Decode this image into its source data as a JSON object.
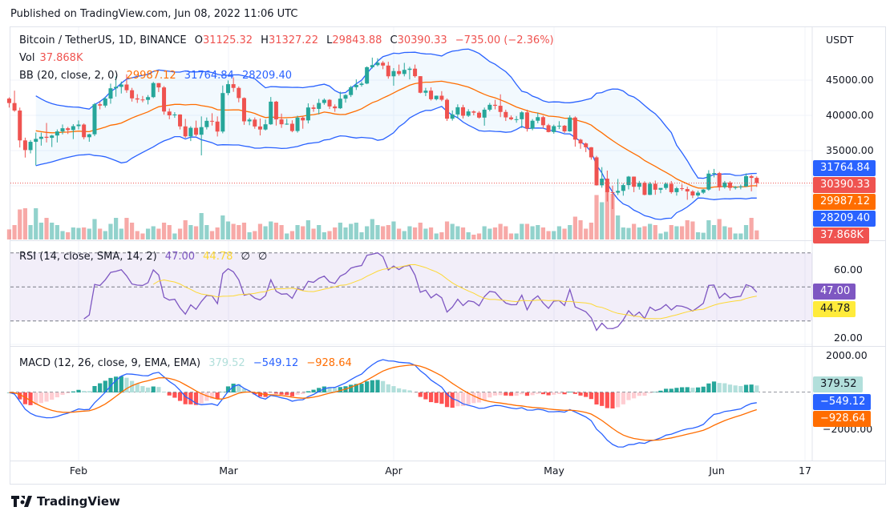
{
  "published": "Published on TradingView.com, Jun 08, 2022 11:06 UTC",
  "legend": {
    "symbol": "Bitcoin / TetherUS, 1D, BINANCE",
    "o_label": "O",
    "o": "31125.32",
    "h_label": "H",
    "h": "31327.22",
    "l_label": "L",
    "l": "29843.88",
    "c_label": "C",
    "c": "30390.33",
    "change": "−735.00 (−2.36%)",
    "vol_label": "Vol",
    "vol": "37.868K",
    "bb_label": "BB (20, close, 2, 0)",
    "bb_basis": "29987.12",
    "bb_upper": "31764.84",
    "bb_lower": "28209.40",
    "rsi_label": "RSI (14, close, SMA, 14, 2)",
    "rsi": "47.00",
    "rsi_ma": "44.78",
    "rsi_n1": "∅",
    "rsi_n2": "∅",
    "macd_label": "MACD (12, 26, close, 9, EMA, EMA)",
    "macd_hist": "379.52",
    "macd": "−549.12",
    "macd_signal": "−928.64"
  },
  "axis": {
    "currency": "USDT",
    "price_ticks": [
      "45000.00",
      "40000.00",
      "35000.00"
    ],
    "rsi_ticks": [
      "60.00",
      "20.00"
    ],
    "macd_ticks": [
      "2000.00",
      "−2000.00"
    ],
    "dates": [
      "Feb",
      "Mar",
      "Apr",
      "May",
      "Jun",
      "17"
    ]
  },
  "tags": {
    "bb_upper": "31764.84",
    "close": "30390.33",
    "bb_basis": "29987.12",
    "bb_lower": "28209.40",
    "vol": "37.868K",
    "rsi": "47.00",
    "rsi_ma": "44.78",
    "macd_hist": "379.52",
    "macd": "−549.12",
    "macd_signal": "−928.64"
  },
  "colors": {
    "up": "#26a69a",
    "down": "#ef5350",
    "bb_band": "#2962ff",
    "bb_basis": "#ff6d00",
    "rsi": "#7e57c2",
    "rsi_ma": "#fdd835",
    "macd": "#2962ff",
    "signal": "#ff6d00"
  },
  "footer": {
    "brand": "TradingView"
  },
  "chart_data": {
    "type": "candlestick",
    "title": "Bitcoin / TetherUS, 1D, BINANCE",
    "ylabel": "USDT",
    "ylim": [
      26000,
      49500
    ],
    "grid": true,
    "columns": [
      "date",
      "open",
      "high",
      "low",
      "close",
      "volume_k"
    ],
    "candles": [
      [
        "2022-01-19",
        42375,
        42550,
        41100,
        41744,
        42
      ],
      [
        "2022-01-20",
        41744,
        43500,
        40500,
        40680,
        60
      ],
      [
        "2022-01-21",
        40680,
        41100,
        35440,
        36445,
        125
      ],
      [
        "2022-01-22",
        36445,
        36835,
        34010,
        35071,
        130
      ],
      [
        "2022-01-23",
        35071,
        36500,
        34600,
        36244,
        60
      ],
      [
        "2022-01-24",
        36244,
        37550,
        32900,
        36660,
        130
      ],
      [
        "2022-01-25",
        36660,
        37550,
        35700,
        36958,
        70
      ],
      [
        "2022-01-26",
        36958,
        38920,
        36150,
        36810,
        90
      ],
      [
        "2022-01-27",
        36810,
        37230,
        35500,
        37138,
        70
      ],
      [
        "2022-01-28",
        37138,
        38000,
        36150,
        37713,
        60
      ],
      [
        "2022-01-29",
        37713,
        38700,
        37300,
        38166,
        35
      ],
      [
        "2022-01-30",
        38166,
        38360,
        37350,
        37917,
        30
      ],
      [
        "2022-01-31",
        37917,
        38750,
        36630,
        38466,
        50
      ],
      [
        "2022-02-01",
        38466,
        39270,
        38000,
        38691,
        48
      ],
      [
        "2022-02-02",
        38691,
        38850,
        36600,
        36896,
        50
      ],
      [
        "2022-02-03",
        36896,
        37390,
        36250,
        37311,
        45
      ],
      [
        "2022-02-04",
        37311,
        41750,
        37050,
        41574,
        85
      ],
      [
        "2022-02-05",
        41574,
        41900,
        40850,
        41382,
        45
      ],
      [
        "2022-02-06",
        41382,
        42650,
        41100,
        42380,
        35
      ],
      [
        "2022-02-07",
        42380,
        44500,
        41650,
        43839,
        65
      ],
      [
        "2022-02-08",
        43839,
        45500,
        42650,
        44042,
        90
      ],
      [
        "2022-02-09",
        44042,
        44800,
        43100,
        44372,
        45
      ],
      [
        "2022-02-10",
        44372,
        45820,
        43200,
        43565,
        90
      ],
      [
        "2022-02-11",
        43565,
        43900,
        41950,
        42407,
        70
      ],
      [
        "2022-02-12",
        42407,
        43000,
        41750,
        42244,
        35
      ],
      [
        "2022-02-13",
        42244,
        42750,
        41850,
        42197,
        25
      ],
      [
        "2022-02-14",
        42197,
        42880,
        41550,
        42586,
        45
      ],
      [
        "2022-02-15",
        42586,
        44750,
        42450,
        44575,
        55
      ],
      [
        "2022-02-16",
        44575,
        44580,
        43300,
        43961,
        45
      ],
      [
        "2022-02-17",
        43961,
        44150,
        40100,
        40538,
        70
      ],
      [
        "2022-02-18",
        40538,
        40970,
        39450,
        40000,
        60
      ],
      [
        "2022-02-19",
        40000,
        40450,
        39650,
        40118,
        25
      ],
      [
        "2022-02-20",
        40118,
        40150,
        38000,
        38431,
        45
      ],
      [
        "2022-02-21",
        38431,
        39500,
        36800,
        37017,
        80
      ],
      [
        "2022-02-22",
        37017,
        38450,
        36350,
        38230,
        60
      ],
      [
        "2022-02-23",
        38230,
        39250,
        37050,
        37250,
        55
      ],
      [
        "2022-02-24",
        37250,
        39850,
        34320,
        38328,
        110
      ],
      [
        "2022-02-25",
        38328,
        39700,
        38000,
        39219,
        60
      ],
      [
        "2022-02-26",
        39219,
        40300,
        38550,
        39116,
        35
      ],
      [
        "2022-02-27",
        39116,
        39850,
        37000,
        37699,
        50
      ],
      [
        "2022-02-28",
        37699,
        44230,
        37450,
        43160,
        100
      ],
      [
        "2022-03-01",
        43160,
        44950,
        42850,
        44421,
        75
      ],
      [
        "2022-03-02",
        44421,
        45400,
        43330,
        43892,
        65
      ],
      [
        "2022-03-03",
        43892,
        44100,
        41850,
        42454,
        60
      ],
      [
        "2022-03-04",
        42454,
        42550,
        38650,
        39148,
        70
      ],
      [
        "2022-03-05",
        39148,
        39650,
        38600,
        39398,
        30
      ],
      [
        "2022-03-06",
        39398,
        39700,
        38100,
        38420,
        35
      ],
      [
        "2022-03-07",
        38420,
        39550,
        37150,
        37988,
        65
      ],
      [
        "2022-03-08",
        37988,
        39400,
        37850,
        38730,
        55
      ],
      [
        "2022-03-09",
        38730,
        42600,
        38650,
        41941,
        75
      ],
      [
        "2022-03-10",
        41941,
        42050,
        38550,
        39422,
        70
      ],
      [
        "2022-03-11",
        39422,
        40250,
        38220,
        38730,
        60
      ],
      [
        "2022-03-12",
        38730,
        39500,
        38650,
        38807,
        25
      ],
      [
        "2022-03-13",
        38807,
        39300,
        37600,
        37777,
        35
      ],
      [
        "2022-03-14",
        37777,
        39950,
        37550,
        39671,
        60
      ],
      [
        "2022-03-15",
        39671,
        39880,
        38100,
        39280,
        55
      ],
      [
        "2022-03-16",
        39280,
        41700,
        38850,
        41114,
        80
      ],
      [
        "2022-03-17",
        41114,
        41500,
        40500,
        40917,
        45
      ],
      [
        "2022-03-18",
        40917,
        42330,
        40140,
        41757,
        60
      ],
      [
        "2022-03-19",
        41757,
        42400,
        41500,
        42201,
        30
      ],
      [
        "2022-03-20",
        42201,
        42300,
        40900,
        41262,
        35
      ],
      [
        "2022-03-21",
        41262,
        41550,
        40500,
        41002,
        50
      ],
      [
        "2022-03-22",
        41002,
        43360,
        40900,
        42364,
        70
      ],
      [
        "2022-03-23",
        42364,
        43000,
        41800,
        42882,
        50
      ],
      [
        "2022-03-24",
        42882,
        44200,
        42600,
        43991,
        65
      ],
      [
        "2022-03-25",
        43991,
        45100,
        43600,
        44313,
        70
      ],
      [
        "2022-03-26",
        44313,
        44800,
        44070,
        44511,
        30
      ],
      [
        "2022-03-27",
        44511,
        46950,
        44420,
        46827,
        55
      ],
      [
        "2022-03-28",
        46827,
        48190,
        46650,
        47128,
        85
      ],
      [
        "2022-03-29",
        47128,
        48100,
        46950,
        47465,
        60
      ],
      [
        "2022-03-30",
        47465,
        47700,
        46550,
        47062,
        55
      ],
      [
        "2022-03-31",
        47062,
        47600,
        45200,
        45538,
        60
      ],
      [
        "2022-04-01",
        45538,
        46700,
        44200,
        46281,
        75
      ],
      [
        "2022-04-02",
        46281,
        47200,
        45620,
        45868,
        45
      ],
      [
        "2022-04-03",
        45868,
        47440,
        45530,
        46453,
        35
      ],
      [
        "2022-04-04",
        46453,
        46890,
        45100,
        46622,
        55
      ],
      [
        "2022-04-05",
        46622,
        47200,
        45350,
        45555,
        50
      ],
      [
        "2022-04-06",
        45555,
        45560,
        43120,
        43206,
        70
      ],
      [
        "2022-04-07",
        43206,
        43900,
        42730,
        43503,
        45
      ],
      [
        "2022-04-08",
        43503,
        43970,
        42100,
        42287,
        50
      ],
      [
        "2022-04-09",
        42287,
        42800,
        42120,
        42782,
        25
      ],
      [
        "2022-04-10",
        42782,
        43430,
        42000,
        42207,
        30
      ],
      [
        "2022-04-11",
        42207,
        42400,
        39200,
        39521,
        75
      ],
      [
        "2022-04-12",
        39521,
        40700,
        39250,
        40127,
        65
      ],
      [
        "2022-04-13",
        40127,
        41560,
        39550,
        41147,
        55
      ],
      [
        "2022-04-14",
        41147,
        41500,
        39550,
        39942,
        50
      ],
      [
        "2022-04-15",
        39942,
        40870,
        39770,
        40552,
        30
      ],
      [
        "2022-04-16",
        40552,
        40710,
        40000,
        40378,
        20
      ],
      [
        "2022-04-17",
        40378,
        40600,
        39550,
        39678,
        25
      ],
      [
        "2022-04-18",
        39678,
        41100,
        38530,
        40801,
        55
      ],
      [
        "2022-04-19",
        40801,
        41760,
        40570,
        41494,
        45
      ],
      [
        "2022-04-20",
        41494,
        42200,
        40850,
        41358,
        50
      ],
      [
        "2022-04-21",
        41358,
        42980,
        39750,
        40480,
        65
      ],
      [
        "2022-04-22",
        40480,
        40800,
        39200,
        39709,
        55
      ],
      [
        "2022-04-23",
        39709,
        39980,
        39300,
        39441,
        25
      ],
      [
        "2022-04-24",
        39441,
        39900,
        38950,
        39450,
        25
      ],
      [
        "2022-04-25",
        39450,
        40600,
        38200,
        40426,
        65
      ],
      [
        "2022-04-26",
        40426,
        40800,
        37700,
        38112,
        65
      ],
      [
        "2022-04-27",
        38112,
        39470,
        37880,
        39235,
        55
      ],
      [
        "2022-04-28",
        39235,
        40370,
        38880,
        39742,
        60
      ],
      [
        "2022-04-29",
        39742,
        39930,
        38170,
        38596,
        50
      ],
      [
        "2022-04-30",
        38596,
        38800,
        37580,
        37630,
        35
      ],
      [
        "2022-05-01",
        37630,
        38680,
        37390,
        38468,
        35
      ],
      [
        "2022-05-02",
        38468,
        39170,
        38050,
        38525,
        55
      ],
      [
        "2022-05-03",
        38525,
        38630,
        37500,
        37729,
        45
      ],
      [
        "2022-05-04",
        37729,
        40000,
        37670,
        39690,
        60
      ],
      [
        "2022-05-05",
        39690,
        39850,
        35560,
        36552,
        95
      ],
      [
        "2022-05-06",
        36552,
        36680,
        35250,
        36013,
        80
      ],
      [
        "2022-05-07",
        36013,
        36150,
        34780,
        35472,
        45
      ],
      [
        "2022-05-08",
        35472,
        35500,
        33710,
        34039,
        70
      ],
      [
        "2022-05-09",
        34039,
        34250,
        30030,
        30076,
        185
      ],
      [
        "2022-05-10",
        30076,
        32650,
        29730,
        31017,
        155
      ],
      [
        "2022-05-11",
        31017,
        32160,
        27780,
        29103,
        200
      ],
      [
        "2022-05-12",
        29103,
        30030,
        26700,
        29030,
        190
      ],
      [
        "2022-05-13",
        29030,
        30980,
        28700,
        29283,
        100
      ],
      [
        "2022-05-14",
        29283,
        30350,
        28600,
        30101,
        50
      ],
      [
        "2022-05-15",
        30101,
        31400,
        29490,
        31305,
        48
      ],
      [
        "2022-05-16",
        31305,
        31320,
        29100,
        29863,
        65
      ],
      [
        "2022-05-17",
        29863,
        30700,
        29460,
        30425,
        50
      ],
      [
        "2022-05-18",
        30425,
        30650,
        28650,
        28716,
        55
      ],
      [
        "2022-05-19",
        28716,
        30550,
        28680,
        30297,
        65
      ],
      [
        "2022-05-20",
        30297,
        30750,
        28730,
        29445,
        60
      ],
      [
        "2022-05-21",
        29445,
        29600,
        28950,
        29700,
        25
      ],
      [
        "2022-05-22",
        29700,
        30470,
        29450,
        30285,
        32
      ],
      [
        "2022-05-23",
        30285,
        30680,
        28890,
        29101,
        60
      ],
      [
        "2022-05-24",
        29101,
        29860,
        28610,
        29655,
        55
      ],
      [
        "2022-05-25",
        29655,
        30220,
        29300,
        29543,
        55
      ],
      [
        "2022-05-26",
        29543,
        29870,
        28020,
        29201,
        80
      ],
      [
        "2022-05-27",
        29201,
        29400,
        28260,
        28630,
        75
      ],
      [
        "2022-05-28",
        28630,
        29300,
        28450,
        29031,
        30
      ],
      [
        "2022-05-29",
        29031,
        29550,
        28850,
        29468,
        28
      ],
      [
        "2022-05-30",
        29468,
        32220,
        29300,
        31734,
        80
      ],
      [
        "2022-05-31",
        31734,
        32400,
        31200,
        31802,
        60
      ],
      [
        "2022-06-01",
        31802,
        31980,
        29300,
        29799,
        85
      ],
      [
        "2022-06-02",
        29799,
        30690,
        29600,
        30468,
        55
      ],
      [
        "2022-06-03",
        30468,
        30670,
        29320,
        29704,
        50
      ],
      [
        "2022-06-04",
        29704,
        29950,
        29480,
        29833,
        25
      ],
      [
        "2022-06-05",
        29833,
        30170,
        29500,
        29907,
        25
      ],
      [
        "2022-06-06",
        29907,
        31760,
        29880,
        31370,
        60
      ],
      [
        "2022-06-07",
        31370,
        31560,
        29220,
        31125,
        90
      ],
      [
        "2022-06-08",
        31125.32,
        31327.22,
        29843.88,
        30390.33,
        37.868
      ]
    ],
    "indicators": {
      "bollinger": {
        "length": 20,
        "mult": 2
      },
      "rsi": {
        "length": 14,
        "ma_length": 14,
        "levels": [
          70,
          50,
          30
        ],
        "ylim": [
          14,
          80
        ]
      },
      "macd": {
        "fast": 12,
        "slow": 26,
        "signal": 9,
        "ylim": [
          -3900,
          2600
        ]
      }
    }
  }
}
